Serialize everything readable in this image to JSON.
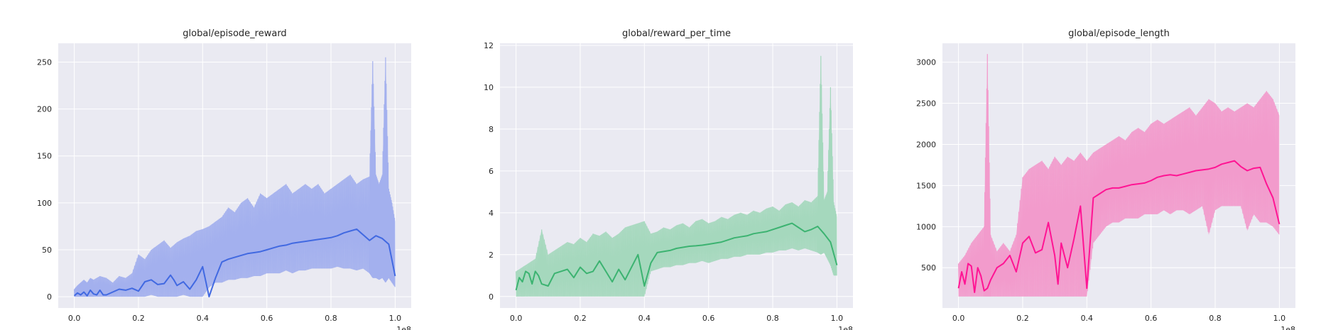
{
  "chart_data": [
    {
      "type": "line",
      "title": "global/episode_reward",
      "x_offset_label": "1e8",
      "xlim": [
        -0.05,
        1.05
      ],
      "ylim": [
        -12,
        270
      ],
      "x_ticks": [
        0.0,
        0.2,
        0.4,
        0.6,
        0.8,
        1.0
      ],
      "x_tick_labels": [
        "0.0",
        "0.2",
        "0.4",
        "0.6",
        "0.8",
        "1.0"
      ],
      "y_ticks": [
        0,
        50,
        100,
        150,
        200,
        250
      ],
      "y_tick_labels": [
        "0",
        "50",
        "100",
        "150",
        "200",
        "250"
      ],
      "grid": true,
      "colors": {
        "raw": "#a3b0ee",
        "smoothed": "#4169e1",
        "background": "#eaeaf2",
        "grid": "#ffffff"
      },
      "series": [
        {
          "role": "raw",
          "x": [
            0.0,
            0.01,
            0.02,
            0.03,
            0.04,
            0.05,
            0.06,
            0.08,
            0.1,
            0.12,
            0.14,
            0.16,
            0.18,
            0.2,
            0.22,
            0.24,
            0.26,
            0.28,
            0.3,
            0.32,
            0.34,
            0.36,
            0.38,
            0.4,
            0.42,
            0.44,
            0.46,
            0.48,
            0.5,
            0.52,
            0.54,
            0.56,
            0.58,
            0.6,
            0.62,
            0.64,
            0.66,
            0.68,
            0.7,
            0.72,
            0.74,
            0.76,
            0.78,
            0.8,
            0.82,
            0.84,
            0.86,
            0.88,
            0.9,
            0.92,
            0.93,
            0.94,
            0.95,
            0.96,
            0.97,
            0.98,
            0.99,
            1.0
          ],
          "y_low": [
            0,
            0,
            0,
            0,
            0,
            0,
            0,
            0,
            0,
            0,
            0,
            0,
            0,
            0,
            0,
            2,
            0,
            0,
            0,
            0,
            2,
            0,
            0,
            0,
            10,
            15,
            15,
            18,
            18,
            20,
            20,
            22,
            22,
            25,
            25,
            25,
            28,
            25,
            28,
            28,
            30,
            30,
            30,
            30,
            32,
            30,
            30,
            28,
            30,
            25,
            20,
            20,
            18,
            20,
            15,
            20,
            15,
            10
          ],
          "y_high": [
            8,
            12,
            15,
            18,
            15,
            20,
            18,
            22,
            20,
            15,
            22,
            20,
            25,
            45,
            40,
            50,
            55,
            60,
            52,
            58,
            62,
            65,
            70,
            72,
            75,
            80,
            85,
            95,
            90,
            100,
            105,
            95,
            110,
            105,
            110,
            115,
            120,
            110,
            115,
            120,
            115,
            120,
            110,
            115,
            120,
            125,
            130,
            120,
            125,
            128,
            251,
            130,
            120,
            130,
            255,
            115,
            100,
            80
          ]
        },
        {
          "role": "smoothed",
          "x": [
            0.0,
            0.01,
            0.02,
            0.03,
            0.04,
            0.05,
            0.06,
            0.07,
            0.08,
            0.09,
            0.1,
            0.12,
            0.14,
            0.16,
            0.18,
            0.2,
            0.22,
            0.24,
            0.26,
            0.28,
            0.3,
            0.31,
            0.32,
            0.34,
            0.36,
            0.38,
            0.4,
            0.42,
            0.44,
            0.46,
            0.48,
            0.5,
            0.52,
            0.54,
            0.56,
            0.58,
            0.6,
            0.62,
            0.64,
            0.66,
            0.68,
            0.7,
            0.72,
            0.74,
            0.76,
            0.78,
            0.8,
            0.82,
            0.84,
            0.86,
            0.88,
            0.9,
            0.92,
            0.94,
            0.96,
            0.98,
            1.0
          ],
          "y": [
            1,
            4,
            2,
            5,
            1,
            7,
            3,
            2,
            7,
            2,
            2,
            5,
            8,
            7,
            9,
            6,
            16,
            18,
            13,
            14,
            23,
            18,
            12,
            16,
            8,
            18,
            32,
            0,
            20,
            37,
            40,
            42,
            44,
            46,
            47,
            48,
            50,
            52,
            54,
            55,
            57,
            58,
            59,
            60,
            61,
            62,
            63,
            65,
            68,
            70,
            72,
            66,
            60,
            65,
            62,
            56,
            22
          ]
        }
      ]
    },
    {
      "type": "line",
      "title": "global/reward_per_time",
      "x_offset_label": "1e8",
      "xlim": [
        -0.05,
        1.05
      ],
      "ylim": [
        -0.55,
        12.1
      ],
      "x_ticks": [
        0.0,
        0.2,
        0.4,
        0.6,
        0.8,
        1.0
      ],
      "x_tick_labels": [
        "0.0",
        "0.2",
        "0.4",
        "0.6",
        "0.8",
        "1.0"
      ],
      "y_ticks": [
        0,
        2,
        4,
        6,
        8,
        10,
        12
      ],
      "y_tick_labels": [
        "0",
        "2",
        "4",
        "6",
        "8",
        "10",
        "12"
      ],
      "grid": true,
      "colors": {
        "raw": "#a5d8bd",
        "smoothed": "#3cb371",
        "background": "#eaeaf2",
        "grid": "#ffffff"
      },
      "series": [
        {
          "role": "raw",
          "x": [
            0.0,
            0.02,
            0.04,
            0.06,
            0.08,
            0.1,
            0.12,
            0.14,
            0.16,
            0.18,
            0.2,
            0.22,
            0.24,
            0.26,
            0.28,
            0.3,
            0.32,
            0.34,
            0.36,
            0.38,
            0.4,
            0.42,
            0.44,
            0.46,
            0.48,
            0.5,
            0.52,
            0.54,
            0.56,
            0.58,
            0.6,
            0.62,
            0.64,
            0.66,
            0.68,
            0.7,
            0.72,
            0.74,
            0.76,
            0.78,
            0.8,
            0.82,
            0.84,
            0.86,
            0.88,
            0.9,
            0.92,
            0.94,
            0.95,
            0.96,
            0.97,
            0.98,
            0.99,
            1.0
          ],
          "y_low": [
            0,
            0,
            0,
            0,
            0,
            0,
            0,
            0,
            0,
            0,
            0,
            0,
            0,
            0,
            0,
            0,
            0,
            0,
            0,
            0,
            0,
            1.2,
            1.3,
            1.4,
            1.4,
            1.5,
            1.5,
            1.6,
            1.6,
            1.7,
            1.6,
            1.7,
            1.8,
            1.8,
            1.9,
            1.9,
            2.0,
            2.0,
            2.0,
            2.1,
            2.1,
            2.2,
            2.2,
            2.3,
            2.2,
            2.3,
            2.2,
            2.1,
            2.0,
            2.1,
            1.8,
            1.5,
            1.0,
            1.0
          ],
          "y_high": [
            1.2,
            1.4,
            1.6,
            1.8,
            3.2,
            2.0,
            2.2,
            2.4,
            2.6,
            2.5,
            2.8,
            2.6,
            3.0,
            2.9,
            3.1,
            2.8,
            3.0,
            3.3,
            3.4,
            3.5,
            3.6,
            3.0,
            3.1,
            3.3,
            3.2,
            3.4,
            3.5,
            3.3,
            3.6,
            3.7,
            3.5,
            3.6,
            3.8,
            3.7,
            3.9,
            4.0,
            3.9,
            4.1,
            4.0,
            4.2,
            4.3,
            4.1,
            4.4,
            4.5,
            4.3,
            4.6,
            4.5,
            4.8,
            11.5,
            4.6,
            5.0,
            10.0,
            4.5,
            3.8
          ]
        },
        {
          "role": "smoothed",
          "x": [
            0.0,
            0.01,
            0.02,
            0.03,
            0.04,
            0.05,
            0.06,
            0.07,
            0.08,
            0.1,
            0.12,
            0.14,
            0.16,
            0.18,
            0.2,
            0.22,
            0.24,
            0.26,
            0.28,
            0.3,
            0.32,
            0.34,
            0.36,
            0.38,
            0.4,
            0.42,
            0.44,
            0.46,
            0.48,
            0.5,
            0.52,
            0.54,
            0.56,
            0.58,
            0.6,
            0.62,
            0.64,
            0.66,
            0.68,
            0.7,
            0.72,
            0.74,
            0.76,
            0.78,
            0.8,
            0.82,
            0.84,
            0.86,
            0.88,
            0.9,
            0.92,
            0.94,
            0.96,
            0.98,
            1.0
          ],
          "y": [
            0.3,
            0.9,
            0.7,
            1.2,
            1.1,
            0.6,
            1.2,
            1.0,
            0.6,
            0.5,
            1.1,
            1.2,
            1.3,
            0.9,
            1.4,
            1.1,
            1.2,
            1.7,
            1.2,
            0.7,
            1.3,
            0.8,
            1.4,
            2.0,
            0.5,
            1.6,
            2.1,
            2.15,
            2.2,
            2.3,
            2.35,
            2.4,
            2.42,
            2.45,
            2.5,
            2.55,
            2.6,
            2.7,
            2.8,
            2.85,
            2.9,
            3.0,
            3.05,
            3.1,
            3.2,
            3.3,
            3.4,
            3.5,
            3.3,
            3.1,
            3.2,
            3.35,
            3.0,
            2.6,
            1.5
          ]
        }
      ]
    },
    {
      "type": "line",
      "title": "global/episode_length",
      "x_offset_label": "1e8",
      "xlim": [
        -0.05,
        1.05
      ],
      "ylim": [
        10,
        3230
      ],
      "x_ticks": [
        0.0,
        0.2,
        0.4,
        0.6,
        0.8,
        1.0
      ],
      "x_tick_labels": [
        "0.0",
        "0.2",
        "0.4",
        "0.6",
        "0.8",
        "1.0"
      ],
      "y_ticks": [
        500,
        1000,
        1500,
        2000,
        2500,
        3000
      ],
      "y_tick_labels": [
        "500",
        "1000",
        "1500",
        "2000",
        "2500",
        "3000"
      ],
      "grid": true,
      "colors": {
        "raw": "#f29bcc",
        "smoothed": "#ff1493",
        "background": "#eaeaf2",
        "grid": "#ffffff"
      },
      "series": [
        {
          "role": "raw",
          "x": [
            0.0,
            0.02,
            0.04,
            0.06,
            0.08,
            0.09,
            0.1,
            0.12,
            0.14,
            0.16,
            0.18,
            0.2,
            0.22,
            0.24,
            0.26,
            0.28,
            0.3,
            0.32,
            0.34,
            0.36,
            0.38,
            0.4,
            0.42,
            0.44,
            0.46,
            0.48,
            0.5,
            0.52,
            0.54,
            0.56,
            0.58,
            0.6,
            0.62,
            0.64,
            0.66,
            0.68,
            0.7,
            0.72,
            0.74,
            0.76,
            0.78,
            0.8,
            0.82,
            0.84,
            0.86,
            0.88,
            0.9,
            0.92,
            0.94,
            0.96,
            0.98,
            1.0
          ],
          "y_low": [
            150,
            150,
            150,
            150,
            150,
            150,
            150,
            150,
            150,
            150,
            150,
            150,
            150,
            150,
            150,
            150,
            150,
            150,
            150,
            150,
            150,
            150,
            800,
            900,
            1000,
            1050,
            1050,
            1100,
            1100,
            1100,
            1150,
            1150,
            1150,
            1200,
            1150,
            1200,
            1200,
            1150,
            1200,
            1250,
            900,
            1200,
            1250,
            1250,
            1250,
            1250,
            950,
            1150,
            1050,
            1050,
            1000,
            900
          ],
          "y_high": [
            550,
            650,
            800,
            900,
            1000,
            3100,
            900,
            700,
            800,
            700,
            900,
            1600,
            1700,
            1750,
            1800,
            1700,
            1850,
            1750,
            1850,
            1800,
            1900,
            1800,
            1900,
            1950,
            2000,
            2050,
            2100,
            2050,
            2150,
            2200,
            2150,
            2250,
            2300,
            2250,
            2300,
            2350,
            2400,
            2450,
            2350,
            2450,
            2550,
            2500,
            2400,
            2450,
            2400,
            2450,
            2500,
            2450,
            2550,
            2650,
            2550,
            2350
          ]
        },
        {
          "role": "smoothed",
          "x": [
            0.0,
            0.01,
            0.02,
            0.03,
            0.04,
            0.05,
            0.06,
            0.07,
            0.08,
            0.09,
            0.1,
            0.12,
            0.14,
            0.16,
            0.18,
            0.2,
            0.22,
            0.24,
            0.26,
            0.28,
            0.3,
            0.31,
            0.32,
            0.34,
            0.36,
            0.38,
            0.4,
            0.42,
            0.44,
            0.46,
            0.48,
            0.5,
            0.52,
            0.54,
            0.56,
            0.58,
            0.6,
            0.62,
            0.64,
            0.66,
            0.68,
            0.7,
            0.72,
            0.74,
            0.76,
            0.78,
            0.8,
            0.82,
            0.84,
            0.86,
            0.88,
            0.9,
            0.92,
            0.94,
            0.96,
            0.98,
            1.0
          ],
          "y": [
            250,
            450,
            300,
            550,
            520,
            200,
            500,
            400,
            220,
            250,
            350,
            500,
            550,
            650,
            450,
            800,
            880,
            680,
            720,
            1050,
            650,
            300,
            800,
            500,
            850,
            1250,
            250,
            1350,
            1400,
            1450,
            1470,
            1470,
            1490,
            1510,
            1520,
            1530,
            1560,
            1600,
            1620,
            1630,
            1620,
            1640,
            1660,
            1680,
            1690,
            1700,
            1720,
            1760,
            1780,
            1800,
            1730,
            1680,
            1710,
            1720,
            1520,
            1350,
            1030
          ]
        }
      ]
    }
  ]
}
